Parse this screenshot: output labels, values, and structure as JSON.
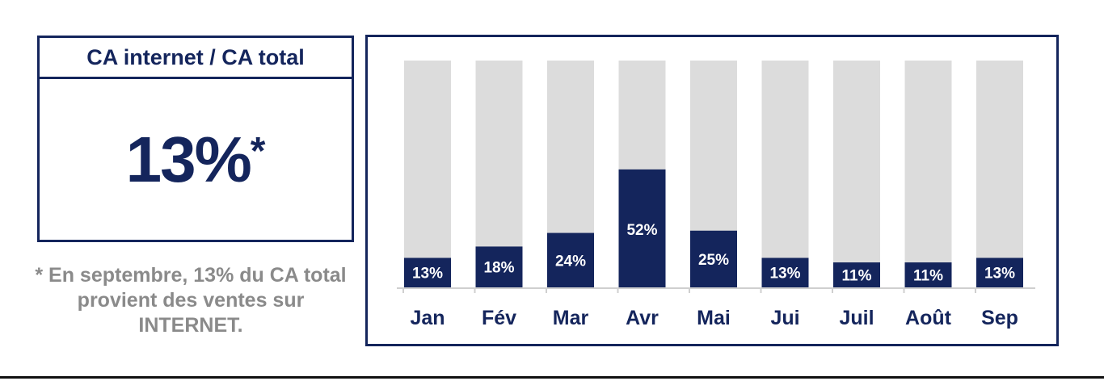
{
  "kpi": {
    "title": "CA internet / CA total",
    "value": "13%",
    "marker": "*"
  },
  "footnote": "* En septembre, 13% du CA total provient des ventes sur INTERNET.",
  "colors": {
    "navy": "#14255c",
    "track": "#dcdcdc",
    "axis": "#cfcfcf"
  },
  "chart_data": {
    "type": "bar",
    "categories": [
      "Jan",
      "Fév",
      "Mar",
      "Avr",
      "Mai",
      "Jui",
      "Juil",
      "Août",
      "Sep"
    ],
    "values": [
      13,
      18,
      24,
      52,
      25,
      13,
      11,
      11,
      13
    ],
    "value_labels": [
      "13%",
      "18%",
      "24%",
      "52%",
      "25%",
      "13%",
      "11%",
      "11%",
      "13%"
    ],
    "ylim": [
      0,
      100
    ],
    "title": "",
    "xlabel": "",
    "ylabel": "",
    "grid": false
  }
}
